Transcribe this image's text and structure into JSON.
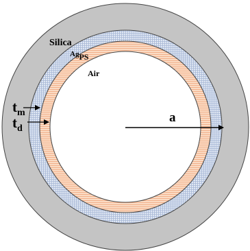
{
  "labels": {
    "cladding": "Silica",
    "metal": "Ag",
    "metal_sub": "PS",
    "core": "Air",
    "radius": "a",
    "tm_base": "t",
    "tm_sub": "m",
    "td_base": "t",
    "td_sub": "d"
  },
  "colors": {
    "background": "#ffffff",
    "cladding": "#c4c4c4",
    "silver_layer": "#dfe7f3",
    "silver_grid": "#a7b7d6",
    "dielectric_layer": "#fbe3cf",
    "dielectric_stripe": "#f2b08a",
    "core": "#ffffff",
    "outline": "#444444",
    "text": "#000000"
  }
}
